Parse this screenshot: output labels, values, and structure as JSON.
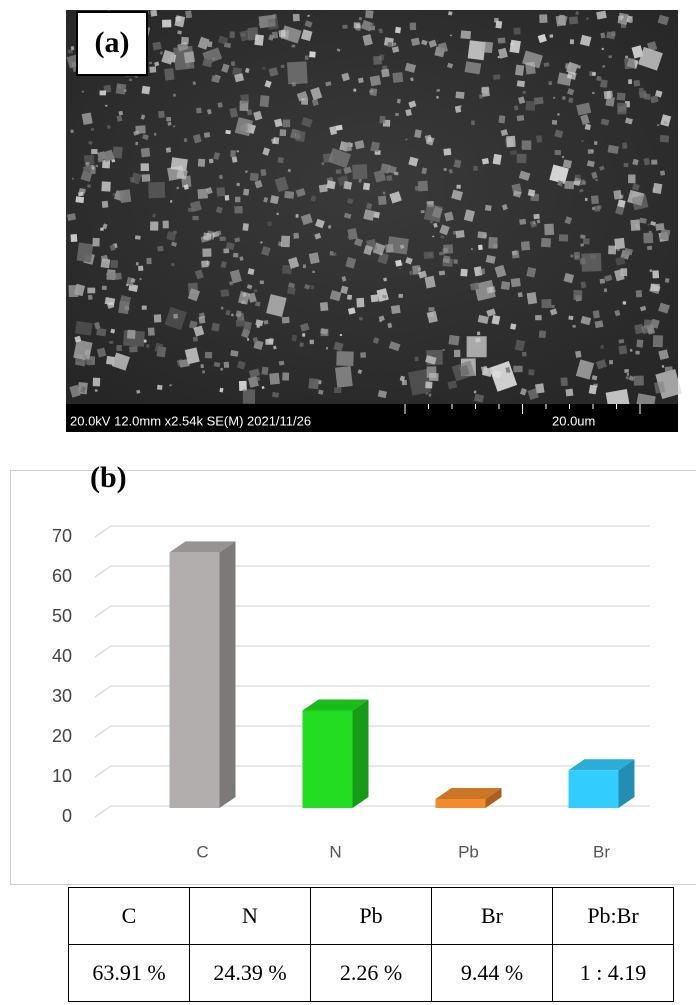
{
  "image_panel": {
    "label": "(a)",
    "info": "20.0kV 12.0mm x2.54k SE(M) 2021/11/26",
    "scale": "20.0um"
  },
  "chart_data": {
    "type": "bar",
    "label": "(b)",
    "categories": [
      "C",
      "N",
      "Pb",
      "Br"
    ],
    "values": [
      63.91,
      24.39,
      2.26,
      9.44
    ],
    "colors": [
      "#b3aeae",
      "#22dd22",
      "#f28a2e",
      "#33ccff"
    ],
    "ylim": [
      0,
      70
    ],
    "yticks": [
      0,
      10,
      20,
      30,
      40,
      50,
      60,
      70
    ],
    "grid": true
  },
  "table": {
    "header": [
      "C",
      "N",
      "Pb",
      "Br",
      "Pb:Br"
    ],
    "rows": [
      [
        "63.91 %",
        "24.39 %",
        "2.26 %",
        "9.44 %",
        "1 : 4.19"
      ]
    ]
  }
}
